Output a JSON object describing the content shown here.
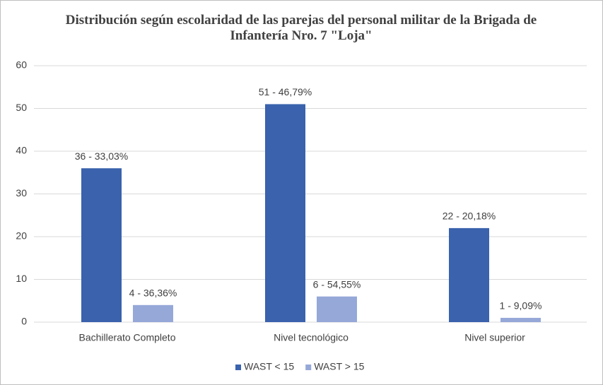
{
  "chart_data": {
    "type": "bar",
    "title": "Distribución según escolaridad de las parejas del personal militar de la Brigada de Infantería Nro. 7 \"Loja\"",
    "categories": [
      "Bachillerato Completo",
      "Nivel tecnológico",
      "Nivel superior"
    ],
    "series": [
      {
        "name": "WAST < 15",
        "color": "#3a62ad",
        "values": [
          36,
          51,
          22
        ],
        "value_labels": [
          "36 - 33,03%",
          "51 - 46,79%",
          "22 - 20,18%"
        ]
      },
      {
        "name": "WAST > 15",
        "color": "#95a8d8",
        "values": [
          4,
          6,
          1
        ],
        "value_labels": [
          "4 - 36,36%",
          "6 - 54,55%",
          "1 - 9,09%"
        ]
      }
    ],
    "ylim": [
      0,
      60
    ],
    "yticks": [
      0,
      10,
      20,
      30,
      40,
      50,
      60
    ],
    "grid": true,
    "legend": "bottom"
  }
}
